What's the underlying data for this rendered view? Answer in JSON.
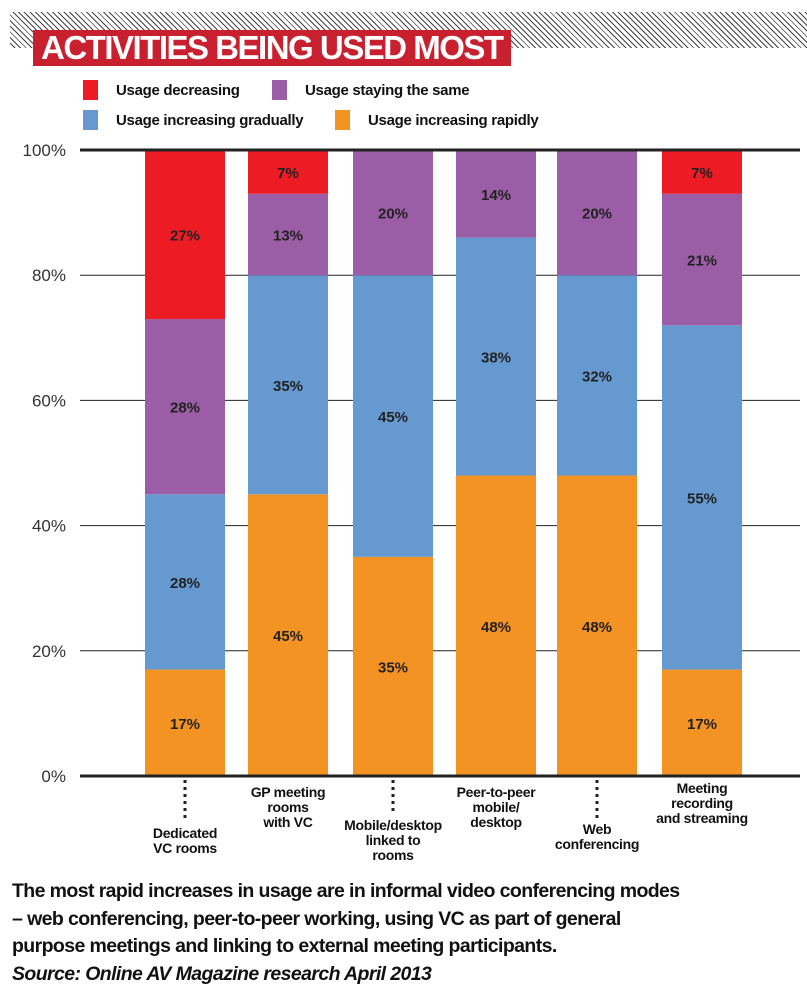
{
  "chart_data": {
    "type": "bar",
    "stacked": true,
    "percent": true,
    "title": "ACTIVITIES BEING USED MOST",
    "categories": [
      "Dedicated\nVC rooms",
      "GP meeting\nrooms\nwith VC",
      "Mobile/desktop\nlinked to\nrooms",
      "Peer-to-peer\nmobile/\ndesktop",
      "Web\nconferencing",
      "Meeting\nrecording\nand streaming"
    ],
    "series": [
      {
        "name": "Usage increasing rapidly",
        "color": "#f39323",
        "values": [
          17,
          45,
          35,
          48,
          48,
          17
        ]
      },
      {
        "name": "Usage increasing gradually",
        "color": "#6699d0",
        "values": [
          28,
          35,
          45,
          38,
          32,
          55
        ]
      },
      {
        "name": "Usage staying the same",
        "color": "#9b5ea6",
        "values": [
          28,
          13,
          20,
          14,
          20,
          21
        ]
      },
      {
        "name": "Usage decreasing",
        "color": "#ed1c24",
        "values": [
          27,
          7,
          0,
          0,
          0,
          7
        ]
      }
    ],
    "y_ticks": [
      "0%",
      "20%",
      "40%",
      "60%",
      "80%",
      "100%"
    ],
    "ylim": [
      0,
      100
    ],
    "grid": true,
    "legend_placement": "top"
  },
  "legend": [
    {
      "label": "Usage decreasing",
      "color": "#ed1c24"
    },
    {
      "label": "Usage staying the same",
      "color": "#9b5ea6"
    },
    {
      "label": "Usage increasing gradually",
      "color": "#6699d0"
    },
    {
      "label": "Usage increasing rapidly",
      "color": "#f39323"
    }
  ],
  "footer": {
    "lines": [
      "The most rapid increases in usage are in informal video conferencing modes",
      "– web conferencing, peer-to-peer working, using VC as part of general",
      "purpose meetings and linking to external meeting participants."
    ],
    "source": "Source: Online AV Magazine research April 2013"
  }
}
